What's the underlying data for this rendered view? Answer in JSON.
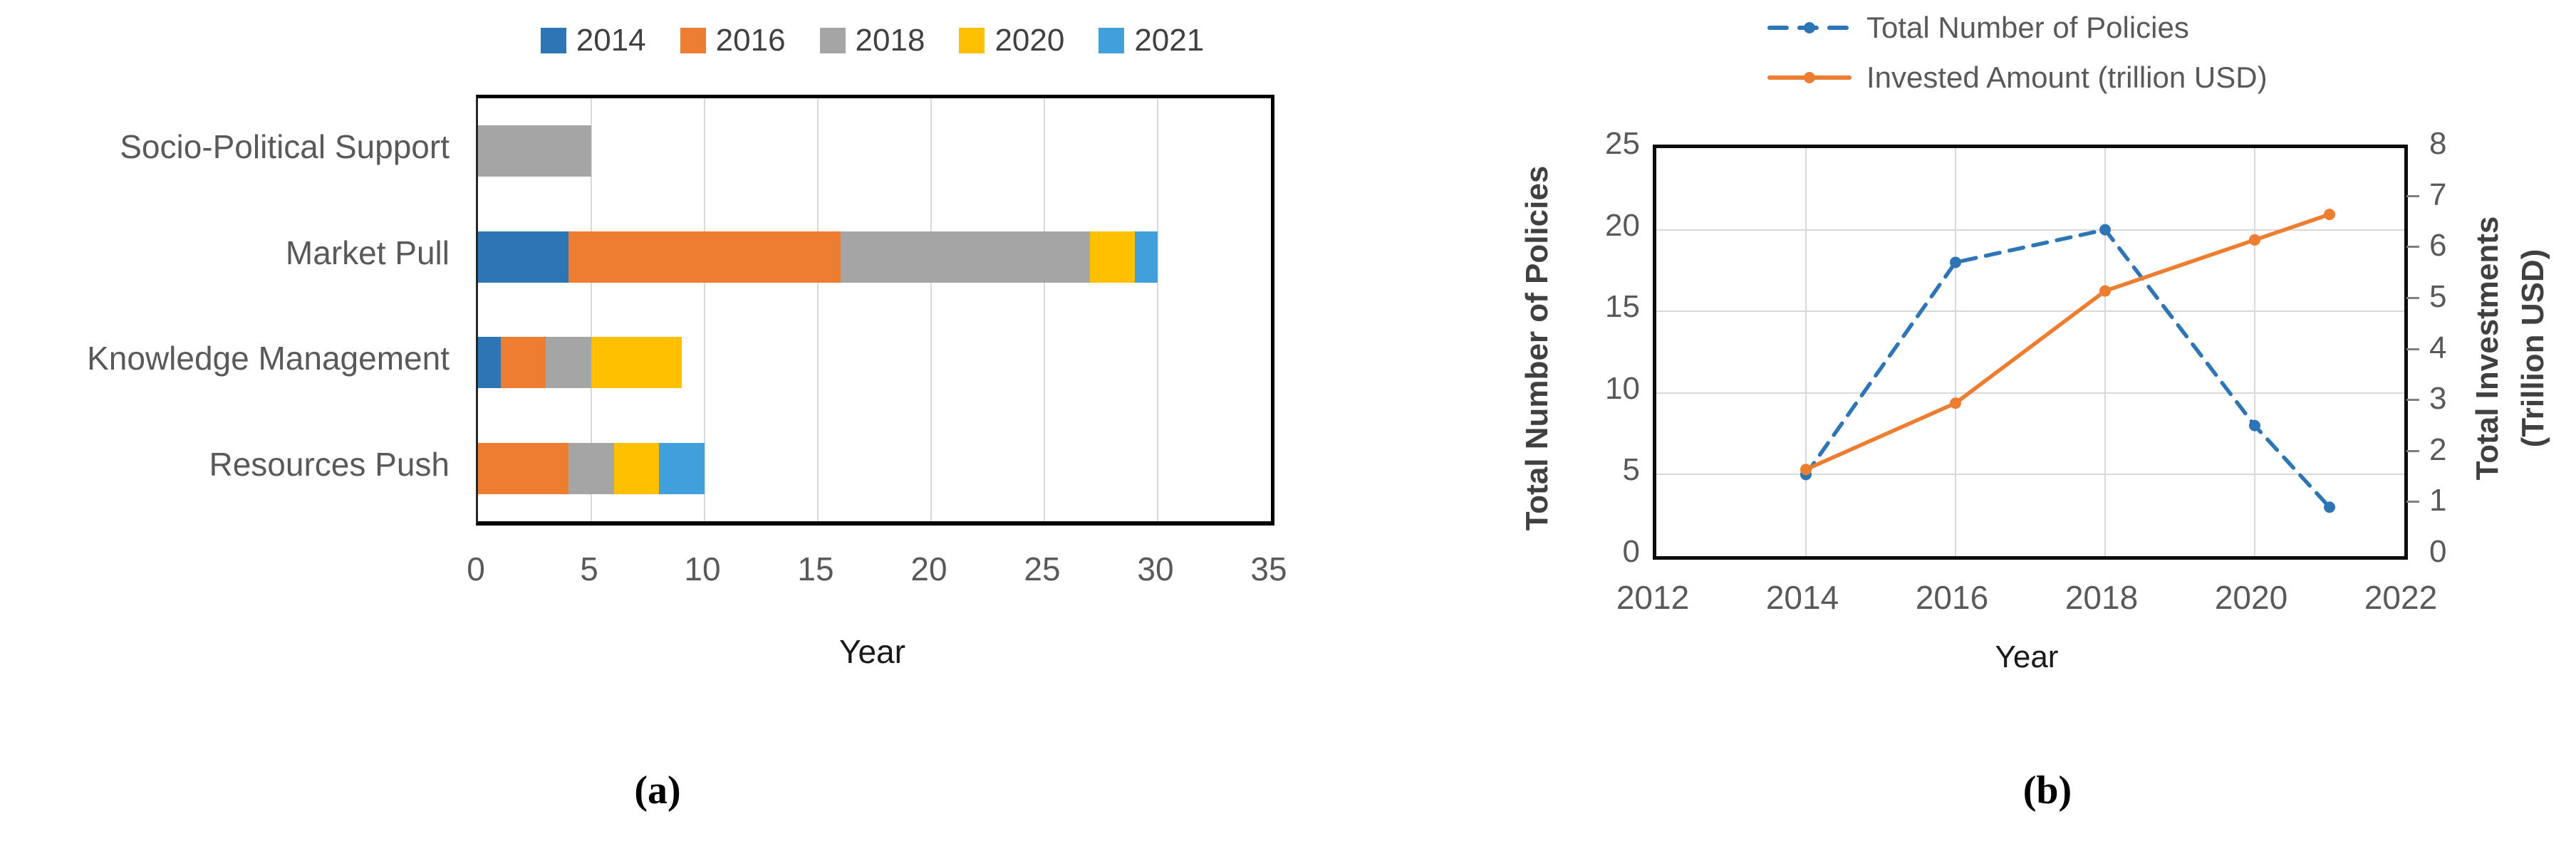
{
  "captions": {
    "a": "(a)",
    "b": "(b)"
  },
  "colors": {
    "blue_2014": "#2E75B6",
    "orange_2016": "#ED7D31",
    "gray_2018": "#A5A5A5",
    "yellow_2020": "#FFC000",
    "lightblue_2021": "#3FA0DC",
    "grid": "#D9D9D9",
    "tick_text": "#595959",
    "frame": "#000000"
  },
  "chart_data": [
    {
      "type": "bar",
      "orientation": "horizontal-stacked",
      "title": "",
      "xlabel": "Year",
      "xlim": [
        0,
        35
      ],
      "x_ticks": [
        0,
        5,
        10,
        15,
        20,
        25,
        30,
        35
      ],
      "grid": true,
      "legend_position": "top",
      "categories": [
        "Socio-Political Support",
        "Market Pull",
        "Knowledge Management",
        "Resources Push"
      ],
      "series": [
        {
          "name": "2014",
          "color": "#2E75B6",
          "values": [
            0,
            4,
            1,
            0
          ]
        },
        {
          "name": "2016",
          "color": "#ED7D31",
          "values": [
            0,
            12,
            2,
            4
          ]
        },
        {
          "name": "2018",
          "color": "#A5A5A5",
          "values": [
            5,
            11,
            2,
            2
          ]
        },
        {
          "name": "2020",
          "color": "#FFC000",
          "values": [
            0,
            2,
            4,
            2
          ]
        },
        {
          "name": "2021",
          "color": "#3FA0DC",
          "values": [
            0,
            1,
            0,
            2
          ]
        }
      ]
    },
    {
      "type": "line",
      "title": "",
      "xlabel": "Year",
      "xlim": [
        2012,
        2022
      ],
      "x_ticks": [
        2012,
        2014,
        2016,
        2018,
        2020,
        2022
      ],
      "x": [
        2014,
        2016,
        2018,
        2020,
        2021
      ],
      "grid": true,
      "legend_position": "top",
      "left_axis": {
        "label": "Total Number of Policies",
        "lim": [
          0,
          25
        ],
        "ticks": [
          0,
          5,
          10,
          15,
          20,
          25
        ]
      },
      "right_axis": {
        "label_line1": "Total Investments",
        "label_line2": "(Trillion USD)",
        "lim": [
          0,
          8
        ],
        "ticks": [
          0,
          1,
          2,
          3,
          4,
          5,
          6,
          7,
          8
        ]
      },
      "series": [
        {
          "name": "Total Number of Policies",
          "axis": "left",
          "style": "dashed",
          "color": "#2E75B6",
          "values": [
            5,
            18,
            20,
            8,
            3
          ]
        },
        {
          "name": "Invested Amount (trillion USD)",
          "axis": "right",
          "style": "solid",
          "color": "#ED7D31",
          "values": [
            1.7,
            3.0,
            5.2,
            6.2,
            6.7
          ]
        }
      ]
    }
  ]
}
